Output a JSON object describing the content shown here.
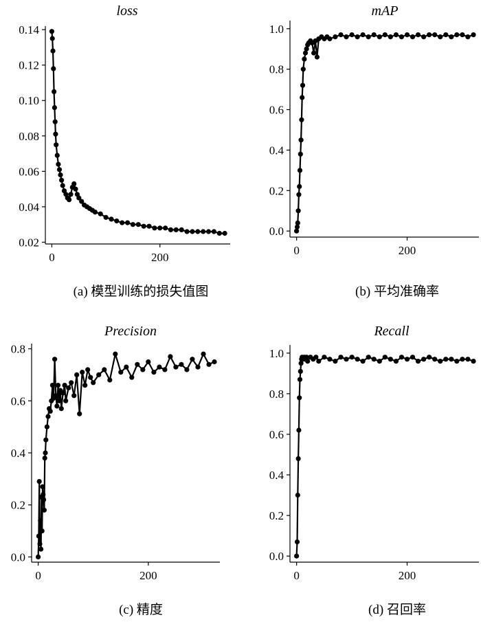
{
  "chart_data": [
    {
      "type": "line",
      "title": "loss",
      "caption": "(a) 模型训练的损失值图",
      "xlim": [
        -12,
        330
      ],
      "ylim": [
        0.019,
        0.142
      ],
      "xticks": [
        0,
        200
      ],
      "xtick_labels": [
        "0",
        "200"
      ],
      "yticks": [
        0.02,
        0.04,
        0.06,
        0.08,
        0.1,
        0.12,
        0.14
      ],
      "ytick_labels": [
        "0.02",
        "0.04",
        "0.06",
        "0.08",
        "0.10",
        "0.12",
        "0.14"
      ],
      "series": [
        {
          "x": [
            0,
            1,
            2,
            3,
            4,
            5,
            6,
            7,
            8,
            10,
            12,
            14,
            16,
            18,
            20,
            23,
            26,
            29,
            32,
            35,
            38,
            41,
            44,
            47,
            50,
            55,
            60,
            65,
            70,
            75,
            80,
            90,
            100,
            110,
            120,
            130,
            140,
            150,
            160,
            170,
            180,
            190,
            200,
            210,
            220,
            230,
            240,
            250,
            260,
            270,
            280,
            290,
            300,
            310,
            320
          ],
          "y": [
            0.139,
            0.135,
            0.128,
            0.118,
            0.105,
            0.096,
            0.088,
            0.081,
            0.075,
            0.069,
            0.064,
            0.061,
            0.058,
            0.055,
            0.052,
            0.049,
            0.047,
            0.045,
            0.044,
            0.047,
            0.051,
            0.053,
            0.05,
            0.047,
            0.045,
            0.043,
            0.041,
            0.04,
            0.039,
            0.038,
            0.037,
            0.036,
            0.034,
            0.033,
            0.032,
            0.031,
            0.031,
            0.03,
            0.03,
            0.029,
            0.029,
            0.028,
            0.028,
            0.028,
            0.027,
            0.027,
            0.027,
            0.026,
            0.026,
            0.026,
            0.026,
            0.026,
            0.026,
            0.025,
            0.025
          ]
        }
      ]
    },
    {
      "type": "line",
      "title": "mAP",
      "caption": "(b) 平均准确率",
      "xlim": [
        -12,
        330
      ],
      "ylim": [
        -0.03,
        1.04
      ],
      "xticks": [
        0,
        200
      ],
      "xtick_labels": [
        "0",
        "200"
      ],
      "yticks": [
        0.0,
        0.2,
        0.4,
        0.6,
        0.8,
        1.0
      ],
      "ytick_labels": [
        "0.0",
        "0.2",
        "0.4",
        "0.6",
        "0.8",
        "1.0"
      ],
      "series": [
        {
          "x": [
            0,
            1,
            2,
            3,
            4,
            5,
            6,
            7,
            8,
            9,
            10,
            11,
            12,
            14,
            16,
            18,
            20,
            22,
            25,
            28,
            31,
            34,
            37,
            40,
            45,
            50,
            55,
            60,
            70,
            80,
            90,
            100,
            110,
            120,
            130,
            140,
            150,
            160,
            170,
            180,
            190,
            200,
            210,
            220,
            230,
            240,
            250,
            260,
            270,
            280,
            290,
            300,
            310,
            320
          ],
          "y": [
            0.0,
            0.02,
            0.04,
            0.1,
            0.18,
            0.22,
            0.3,
            0.38,
            0.45,
            0.55,
            0.66,
            0.72,
            0.8,
            0.85,
            0.88,
            0.9,
            0.92,
            0.93,
            0.94,
            0.93,
            0.88,
            0.94,
            0.86,
            0.95,
            0.96,
            0.95,
            0.96,
            0.95,
            0.96,
            0.97,
            0.96,
            0.97,
            0.96,
            0.97,
            0.96,
            0.97,
            0.96,
            0.97,
            0.96,
            0.97,
            0.96,
            0.97,
            0.96,
            0.97,
            0.96,
            0.97,
            0.97,
            0.96,
            0.97,
            0.96,
            0.97,
            0.97,
            0.96,
            0.97
          ]
        }
      ]
    },
    {
      "type": "line",
      "title": "Precision",
      "caption": "(c) 精度",
      "xlim": [
        -12,
        330
      ],
      "ylim": [
        -0.02,
        0.82
      ],
      "xticks": [
        0,
        200
      ],
      "xtick_labels": [
        "0",
        "200"
      ],
      "yticks": [
        0.0,
        0.2,
        0.4,
        0.6,
        0.8
      ],
      "ytick_labels": [
        "0.0",
        "0.2",
        "0.4",
        "0.6",
        "0.8"
      ],
      "series": [
        {
          "x": [
            0,
            1,
            2,
            3,
            4,
            5,
            6,
            7,
            8,
            9,
            10,
            11,
            12,
            13,
            14,
            16,
            18,
            20,
            22,
            24,
            26,
            28,
            30,
            32,
            34,
            36,
            38,
            40,
            42,
            45,
            48,
            50,
            55,
            60,
            65,
            70,
            75,
            80,
            85,
            90,
            95,
            100,
            110,
            120,
            130,
            140,
            150,
            160,
            170,
            180,
            190,
            200,
            210,
            220,
            230,
            240,
            250,
            260,
            270,
            280,
            290,
            300,
            310,
            320
          ],
          "y": [
            0.0,
            0.08,
            0.29,
            0.05,
            0.14,
            0.03,
            0.23,
            0.1,
            0.27,
            0.24,
            0.22,
            0.18,
            0.38,
            0.4,
            0.45,
            0.5,
            0.54,
            0.57,
            0.56,
            0.6,
            0.66,
            0.61,
            0.76,
            0.62,
            0.58,
            0.66,
            0.6,
            0.64,
            0.57,
            0.63,
            0.66,
            0.6,
            0.65,
            0.67,
            0.62,
            0.7,
            0.55,
            0.71,
            0.66,
            0.72,
            0.69,
            0.67,
            0.7,
            0.72,
            0.68,
            0.78,
            0.71,
            0.73,
            0.69,
            0.74,
            0.72,
            0.75,
            0.71,
            0.73,
            0.72,
            0.77,
            0.73,
            0.74,
            0.72,
            0.76,
            0.73,
            0.78,
            0.74,
            0.75
          ]
        }
      ]
    },
    {
      "type": "line",
      "title": "Recall",
      "caption": "(d) 召回率",
      "xlim": [
        -12,
        330
      ],
      "ylim": [
        -0.03,
        1.04
      ],
      "xticks": [
        0,
        200
      ],
      "xtick_labels": [
        "0",
        "200"
      ],
      "yticks": [
        0.0,
        0.2,
        0.4,
        0.6,
        0.8,
        1.0
      ],
      "ytick_labels": [
        "0.0",
        "0.2",
        "0.4",
        "0.6",
        "0.8",
        "1.0"
      ],
      "series": [
        {
          "x": [
            0,
            1,
            2,
            3,
            4,
            5,
            6,
            7,
            8,
            9,
            10,
            12,
            14,
            16,
            18,
            20,
            25,
            30,
            35,
            40,
            50,
            60,
            70,
            80,
            90,
            100,
            110,
            120,
            130,
            140,
            150,
            160,
            170,
            180,
            190,
            200,
            210,
            220,
            230,
            240,
            250,
            260,
            270,
            280,
            290,
            300,
            310,
            320
          ],
          "y": [
            0.0,
            0.07,
            0.3,
            0.48,
            0.62,
            0.78,
            0.87,
            0.91,
            0.95,
            0.97,
            0.98,
            0.97,
            0.98,
            0.97,
            0.98,
            0.96,
            0.98,
            0.97,
            0.98,
            0.96,
            0.98,
            0.97,
            0.96,
            0.98,
            0.97,
            0.98,
            0.97,
            0.96,
            0.98,
            0.97,
            0.96,
            0.98,
            0.97,
            0.96,
            0.98,
            0.97,
            0.98,
            0.96,
            0.97,
            0.98,
            0.97,
            0.96,
            0.97,
            0.97,
            0.96,
            0.97,
            0.97,
            0.96
          ]
        }
      ]
    }
  ]
}
